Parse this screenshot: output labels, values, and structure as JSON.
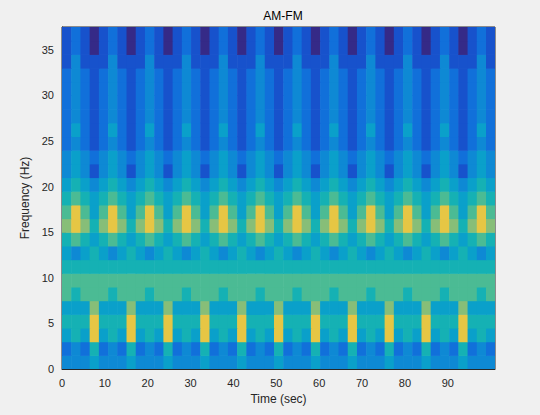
{
  "chart_data": {
    "type": "heatmap",
    "title": "AM-FM",
    "x_label": "Time (sec)",
    "y_label": "Frequency (Hz)",
    "xlim": [
      0,
      101
    ],
    "ylim": [
      0,
      37.5
    ],
    "xticks": [
      0,
      10,
      20,
      30,
      40,
      50,
      60,
      70,
      80,
      90
    ],
    "yticks": [
      0,
      5,
      10,
      15,
      20,
      25,
      30,
      35
    ],
    "grid": false,
    "zlim": [
      0,
      10
    ],
    "x": [
      1.075,
      3.225,
      5.375,
      7.525,
      9.675,
      11.825,
      13.975,
      16.125,
      18.275,
      20.425,
      22.575,
      24.725,
      26.875,
      29.025,
      31.175,
      33.325,
      35.475,
      37.625,
      39.775,
      41.925,
      44.075,
      46.225,
      48.375,
      50.525,
      52.675,
      54.825,
      56.975,
      59.125,
      61.275,
      63.425,
      65.575,
      67.725,
      69.875,
      72.025,
      74.175,
      76.325,
      78.475,
      80.625,
      82.775,
      84.925,
      87.075,
      89.225,
      91.375,
      93.525,
      95.675,
      97.825,
      99.975
    ],
    "y": [
      0.75,
      2.25,
      3.75,
      5.25,
      6.75,
      8.25,
      9.75,
      11.25,
      12.75,
      14.25,
      15.75,
      17.25,
      18.75,
      20.25,
      21.75,
      23.25,
      24.75,
      26.25,
      27.75,
      29.25,
      30.75,
      32.25,
      33.75,
      35.25,
      36.75
    ],
    "values": [
      [
        3,
        3,
        3,
        4,
        3,
        3,
        3,
        4,
        3,
        3,
        3,
        4,
        3,
        3,
        3,
        4,
        3,
        3,
        3,
        4,
        3,
        3,
        3,
        4,
        3,
        3,
        3,
        4,
        3,
        3,
        3,
        4,
        3,
        3,
        3,
        4,
        3,
        3,
        3,
        4,
        3,
        3,
        3,
        4,
        3,
        3,
        3
      ],
      [
        2,
        3,
        2,
        5,
        2,
        3,
        2,
        5,
        2,
        3,
        2,
        5,
        2,
        3,
        2,
        5,
        2,
        3,
        2,
        5,
        2,
        3,
        2,
        5,
        2,
        3,
        2,
        5,
        2,
        3,
        2,
        5,
        2,
        3,
        2,
        5,
        2,
        3,
        2,
        5,
        2,
        3,
        2,
        5,
        2,
        3,
        2
      ],
      [
        4,
        5,
        4,
        9,
        4,
        5,
        4,
        9,
        4,
        5,
        4,
        9,
        4,
        5,
        4,
        9,
        4,
        5,
        4,
        9,
        4,
        5,
        4,
        9,
        4,
        5,
        4,
        9,
        4,
        5,
        4,
        9,
        4,
        5,
        4,
        9,
        4,
        5,
        4,
        9,
        4,
        5,
        4,
        9,
        4,
        5,
        4
      ],
      [
        5,
        5,
        5,
        9,
        5,
        5,
        5,
        9,
        5,
        5,
        5,
        9,
        5,
        5,
        5,
        9,
        5,
        5,
        5,
        9,
        5,
        5,
        5,
        9,
        5,
        5,
        5,
        9,
        5,
        5,
        5,
        9,
        5,
        5,
        5,
        9,
        5,
        5,
        5,
        9,
        5,
        5,
        5,
        9,
        5,
        5,
        5
      ],
      [
        4,
        4,
        4,
        7,
        4,
        4,
        4,
        7,
        4,
        4,
        4,
        7,
        4,
        4,
        4,
        7,
        4,
        4,
        4,
        7,
        4,
        4,
        4,
        7,
        4,
        4,
        4,
        7,
        4,
        4,
        4,
        7,
        4,
        4,
        4,
        7,
        4,
        4,
        4,
        7,
        4,
        4,
        4,
        7,
        4,
        4,
        4
      ],
      [
        6,
        5,
        6,
        6,
        6,
        5,
        6,
        6,
        6,
        5,
        6,
        6,
        6,
        5,
        6,
        6,
        6,
        5,
        6,
        6,
        6,
        5,
        6,
        6,
        6,
        5,
        6,
        6,
        6,
        5,
        6,
        6,
        6,
        5,
        6,
        6,
        6,
        5,
        6,
        6,
        6,
        5,
        6,
        6,
        6,
        5,
        6
      ],
      [
        6,
        6,
        6,
        6,
        6,
        6,
        6,
        6,
        6,
        6,
        6,
        6,
        6,
        6,
        6,
        6,
        6,
        6,
        6,
        6,
        6,
        6,
        6,
        6,
        6,
        6,
        6,
        6,
        6,
        6,
        6,
        6,
        6,
        6,
        6,
        6,
        6,
        6,
        6,
        6,
        6,
        6,
        6,
        6,
        6,
        6,
        6
      ],
      [
        5,
        5,
        5,
        5,
        5,
        5,
        5,
        5,
        5,
        5,
        5,
        5,
        5,
        5,
        5,
        5,
        5,
        5,
        5,
        5,
        5,
        5,
        5,
        5,
        5,
        5,
        5,
        5,
        5,
        5,
        5,
        5,
        5,
        5,
        5,
        5,
        5,
        5,
        5,
        5,
        5,
        5,
        5,
        5,
        5,
        5,
        5
      ],
      [
        4,
        3,
        4,
        5,
        4,
        3,
        4,
        5,
        4,
        3,
        4,
        5,
        4,
        3,
        4,
        5,
        4,
        3,
        4,
        5,
        4,
        3,
        4,
        5,
        4,
        3,
        4,
        5,
        4,
        3,
        4,
        5,
        4,
        3,
        4,
        5,
        4,
        3,
        4,
        5,
        4,
        3,
        4,
        5,
        4,
        3,
        4
      ],
      [
        5,
        6,
        5,
        4,
        5,
        6,
        5,
        4,
        5,
        6,
        5,
        4,
        5,
        6,
        5,
        4,
        5,
        6,
        5,
        4,
        5,
        6,
        5,
        4,
        5,
        6,
        5,
        4,
        5,
        6,
        5,
        4,
        5,
        6,
        5,
        4,
        5,
        6,
        5,
        4,
        5,
        6,
        5,
        4,
        5,
        6,
        5
      ],
      [
        7,
        9,
        7,
        5,
        7,
        9,
        7,
        5,
        7,
        9,
        7,
        5,
        7,
        9,
        7,
        5,
        7,
        9,
        7,
        5,
        7,
        9,
        7,
        5,
        7,
        9,
        7,
        5,
        7,
        9,
        7,
        5,
        7,
        9,
        7,
        5,
        7,
        9,
        7,
        5,
        7,
        9,
        7,
        5,
        7,
        9,
        7
      ],
      [
        6,
        9,
        6,
        4,
        6,
        9,
        6,
        4,
        6,
        9,
        6,
        4,
        6,
        9,
        6,
        4,
        6,
        9,
        6,
        4,
        6,
        9,
        6,
        4,
        6,
        9,
        6,
        4,
        6,
        9,
        6,
        4,
        6,
        9,
        6,
        4,
        6,
        9,
        6,
        4,
        6,
        9,
        6,
        4,
        6,
        9,
        6
      ],
      [
        5,
        6,
        5,
        4,
        5,
        6,
        5,
        4,
        5,
        6,
        5,
        4,
        5,
        6,
        5,
        4,
        5,
        6,
        5,
        4,
        5,
        6,
        5,
        4,
        5,
        6,
        5,
        4,
        5,
        6,
        5,
        4,
        5,
        6,
        5,
        4,
        5,
        6,
        5,
        4,
        5,
        6,
        5,
        4,
        5,
        6,
        5
      ],
      [
        4,
        5,
        4,
        3,
        4,
        5,
        4,
        3,
        4,
        5,
        4,
        3,
        4,
        5,
        4,
        3,
        4,
        5,
        4,
        3,
        4,
        5,
        4,
        3,
        4,
        5,
        4,
        3,
        4,
        5,
        4,
        3,
        4,
        5,
        4,
        3,
        4,
        5,
        4,
        3,
        4,
        5,
        4,
        3,
        4,
        5,
        4
      ],
      [
        3,
        4,
        3,
        1,
        3,
        4,
        3,
        1,
        3,
        4,
        3,
        1,
        3,
        4,
        3,
        1,
        3,
        4,
        3,
        1,
        3,
        4,
        3,
        1,
        3,
        4,
        3,
        1,
        3,
        4,
        3,
        1,
        3,
        4,
        3,
        1,
        3,
        4,
        3,
        1,
        3,
        4,
        3,
        1,
        3,
        4,
        3
      ],
      [
        3,
        4,
        3,
        2,
        3,
        4,
        3,
        2,
        3,
        4,
        3,
        2,
        3,
        4,
        3,
        2,
        3,
        4,
        3,
        2,
        3,
        4,
        3,
        2,
        3,
        4,
        3,
        2,
        3,
        4,
        3,
        2,
        3,
        4,
        3,
        2,
        3,
        4,
        3,
        2,
        3,
        4,
        3,
        2,
        3,
        4,
        3
      ],
      [
        2,
        3,
        2,
        1,
        2,
        3,
        2,
        1,
        2,
        3,
        2,
        1,
        2,
        3,
        2,
        1,
        2,
        3,
        2,
        1,
        2,
        3,
        2,
        1,
        2,
        3,
        2,
        1,
        2,
        3,
        2,
        1,
        2,
        3,
        2,
        1,
        2,
        3,
        2,
        1,
        2,
        3,
        2,
        1,
        2,
        3,
        2
      ],
      [
        2,
        4,
        2,
        1,
        2,
        4,
        2,
        1,
        2,
        4,
        2,
        1,
        2,
        4,
        2,
        1,
        2,
        4,
        2,
        1,
        2,
        4,
        2,
        1,
        2,
        4,
        2,
        1,
        2,
        4,
        2,
        1,
        2,
        4,
        2,
        1,
        2,
        4,
        2,
        1,
        2,
        4,
        2,
        1,
        2,
        4,
        2
      ],
      [
        2,
        3,
        2,
        1,
        2,
        3,
        2,
        1,
        2,
        3,
        2,
        1,
        2,
        3,
        2,
        1,
        2,
        3,
        2,
        1,
        2,
        3,
        2,
        1,
        2,
        3,
        2,
        1,
        2,
        3,
        2,
        1,
        2,
        3,
        2,
        1,
        2,
        3,
        2,
        1,
        2,
        3,
        2,
        1,
        2,
        3,
        2
      ],
      [
        2,
        3,
        2,
        1,
        2,
        3,
        2,
        1,
        2,
        3,
        2,
        1,
        2,
        3,
        2,
        1,
        2,
        3,
        2,
        1,
        2,
        3,
        2,
        1,
        2,
        3,
        2,
        1,
        2,
        3,
        2,
        1,
        2,
        3,
        2,
        1,
        2,
        3,
        2,
        1,
        2,
        3,
        2,
        1,
        2,
        3,
        2
      ],
      [
        2,
        3,
        2,
        1,
        2,
        3,
        2,
        1,
        2,
        3,
        2,
        1,
        2,
        3,
        2,
        1,
        2,
        3,
        2,
        1,
        2,
        3,
        2,
        1,
        2,
        3,
        2,
        1,
        2,
        3,
        2,
        1,
        2,
        3,
        2,
        1,
        2,
        3,
        2,
        1,
        2,
        3,
        2,
        1,
        2,
        3,
        2
      ],
      [
        2,
        3,
        2,
        1,
        2,
        3,
        2,
        1,
        2,
        3,
        2,
        1,
        2,
        3,
        2,
        1,
        2,
        3,
        2,
        1,
        2,
        3,
        2,
        1,
        2,
        3,
        2,
        1,
        2,
        3,
        2,
        1,
        2,
        3,
        2,
        1,
        2,
        3,
        2,
        1,
        2,
        3,
        2,
        1,
        2,
        3,
        2
      ],
      [
        1,
        3,
        1,
        1,
        1,
        3,
        1,
        1,
        1,
        3,
        1,
        1,
        1,
        3,
        1,
        1,
        1,
        3,
        1,
        1,
        1,
        3,
        1,
        1,
        1,
        3,
        1,
        1,
        1,
        3,
        1,
        1,
        1,
        3,
        1,
        1,
        1,
        3,
        1,
        1,
        1,
        3,
        1,
        1,
        1,
        3,
        1
      ],
      [
        1,
        2,
        1,
        0,
        1,
        2,
        1,
        0,
        1,
        2,
        1,
        0,
        1,
        2,
        1,
        0,
        1,
        2,
        1,
        0,
        1,
        2,
        1,
        0,
        1,
        2,
        1,
        0,
        1,
        2,
        1,
        0,
        1,
        2,
        1,
        0,
        1,
        2,
        1,
        0,
        1,
        2,
        1,
        0,
        1,
        2,
        1
      ],
      [
        1,
        2,
        1,
        0,
        1,
        2,
        1,
        0,
        1,
        2,
        1,
        0,
        1,
        2,
        1,
        0,
        1,
        2,
        1,
        0,
        1,
        2,
        1,
        0,
        1,
        2,
        1,
        0,
        1,
        2,
        1,
        0,
        1,
        2,
        1,
        0,
        1,
        2,
        1,
        0,
        1,
        2,
        1,
        0,
        1,
        2,
        1
      ]
    ]
  }
}
